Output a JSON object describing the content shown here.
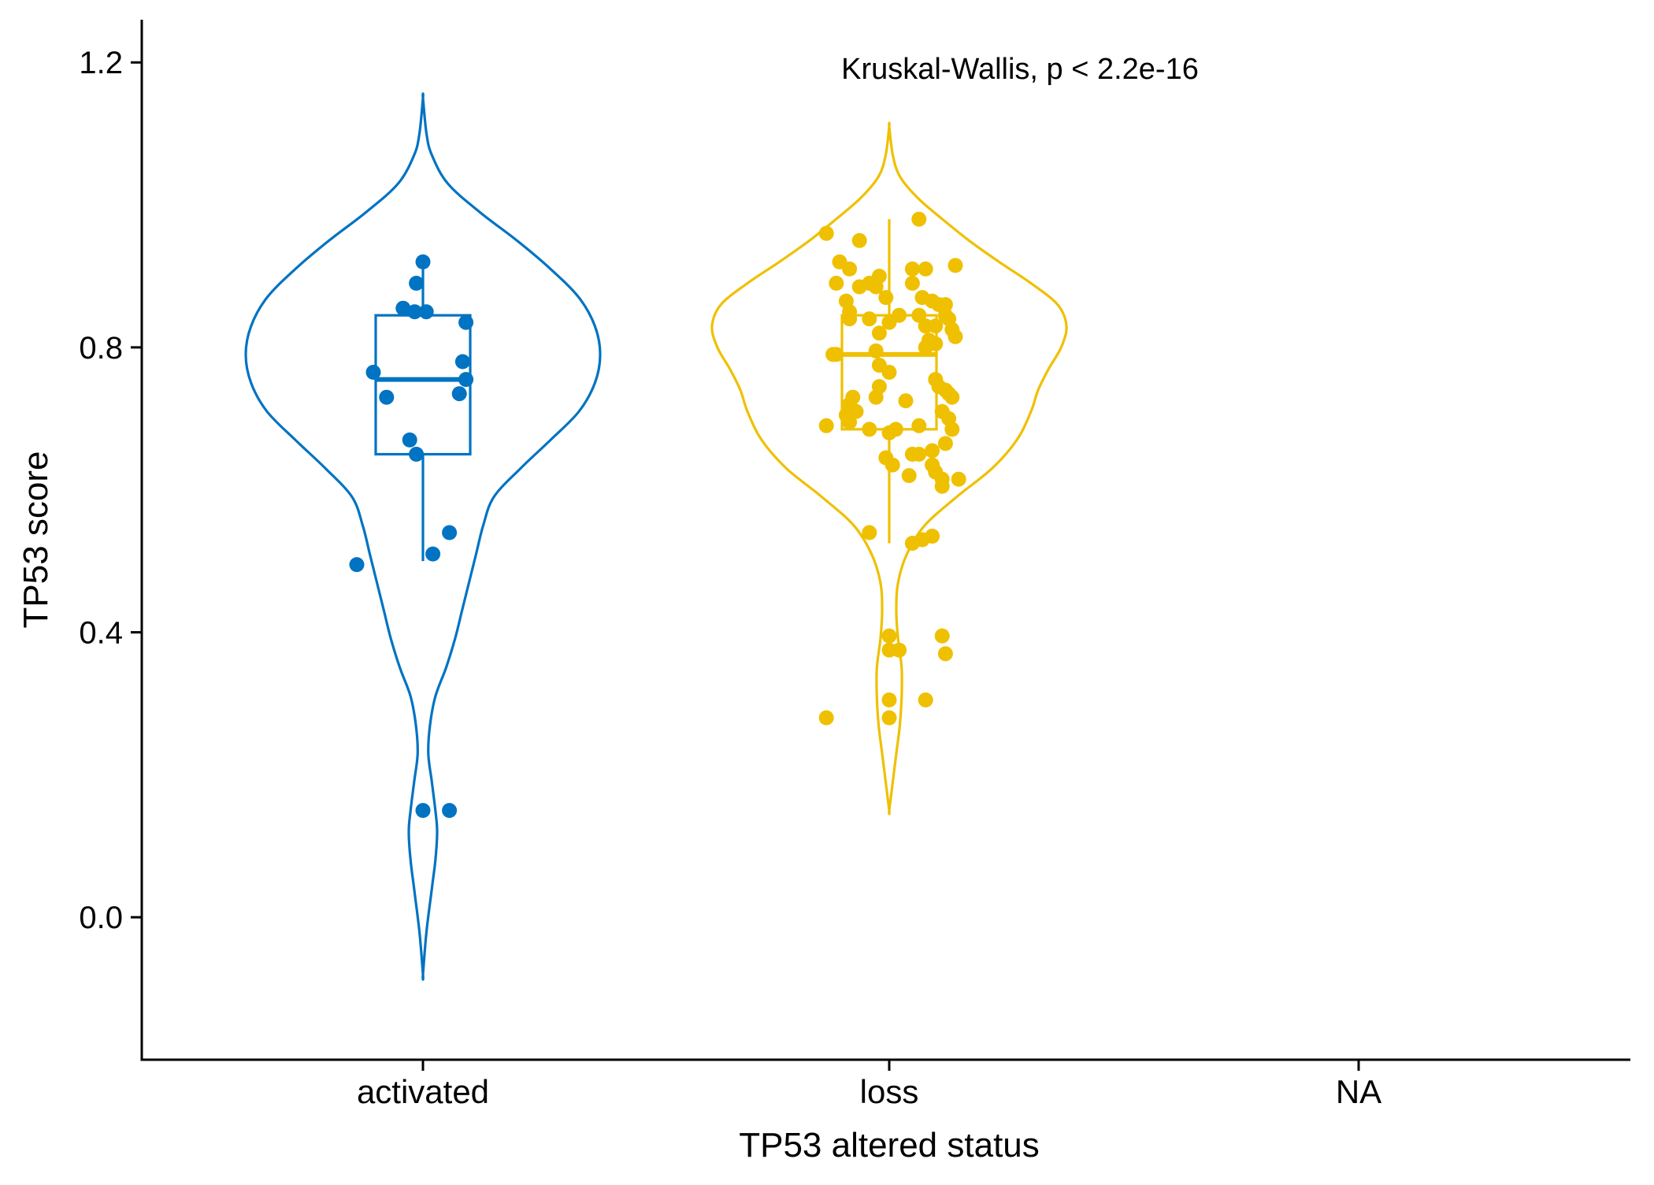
{
  "chart_data": {
    "type": "violin",
    "title": "",
    "annotation": "Kruskal-Wallis, p < 2.2e-16",
    "xlabel": "TP53 altered status",
    "ylabel": "TP53 score",
    "categories": [
      "activated",
      "loss",
      "NA"
    ],
    "ylim": [
      -0.2,
      1.26
    ],
    "yticks": [
      0.0,
      0.4,
      0.8,
      1.2
    ],
    "ytick_labels": [
      "0.0",
      "0.4",
      "0.8",
      "1.2"
    ],
    "grid": false,
    "legend": "none",
    "series": [
      {
        "category": "activated",
        "color": "#0073C2",
        "violin": {
          "y": [
            -0.08,
            -0.02,
            0.04,
            0.08,
            0.12,
            0.15,
            0.19,
            0.23,
            0.27,
            0.31,
            0.35,
            0.39,
            0.43,
            0.47,
            0.51,
            0.55,
            0.59,
            0.63,
            0.67,
            0.71,
            0.75,
            0.79,
            0.83,
            0.87,
            0.91,
            0.95,
            0.99,
            1.03,
            1.07,
            1.1,
            1.15
          ],
          "width": [
            0.0,
            0.02,
            0.05,
            0.07,
            0.08,
            0.07,
            0.05,
            0.03,
            0.04,
            0.07,
            0.13,
            0.18,
            0.22,
            0.26,
            0.3,
            0.34,
            0.4,
            0.55,
            0.72,
            0.88,
            0.97,
            1.0,
            0.97,
            0.88,
            0.72,
            0.53,
            0.32,
            0.14,
            0.05,
            0.02,
            0.0
          ]
        },
        "box": {
          "min": 0.5,
          "q1": 0.65,
          "median": 0.755,
          "q3": 0.845,
          "max": 0.915
        },
        "points": [
          {
            "x": 0.0,
            "y": 0.92
          },
          {
            "x": -0.02,
            "y": 0.89
          },
          {
            "x": -0.06,
            "y": 0.855
          },
          {
            "x": -0.025,
            "y": 0.85
          },
          {
            "x": 0.01,
            "y": 0.85
          },
          {
            "x": 0.13,
            "y": 0.835
          },
          {
            "x": 0.12,
            "y": 0.78
          },
          {
            "x": -0.15,
            "y": 0.765
          },
          {
            "x": 0.13,
            "y": 0.755
          },
          {
            "x": 0.11,
            "y": 0.735
          },
          {
            "x": -0.11,
            "y": 0.73
          },
          {
            "x": -0.04,
            "y": 0.67
          },
          {
            "x": -0.02,
            "y": 0.65
          },
          {
            "x": 0.08,
            "y": 0.54
          },
          {
            "x": 0.03,
            "y": 0.51
          },
          {
            "x": -0.2,
            "y": 0.495
          },
          {
            "x": 0.0,
            "y": 0.15
          },
          {
            "x": 0.08,
            "y": 0.15
          }
        ]
      },
      {
        "category": "loss",
        "color": "#EFC000",
        "violin": {
          "y": [
            0.15,
            0.19,
            0.23,
            0.27,
            0.31,
            0.35,
            0.39,
            0.43,
            0.47,
            0.51,
            0.55,
            0.59,
            0.63,
            0.67,
            0.71,
            0.74,
            0.77,
            0.8,
            0.83,
            0.86,
            0.89,
            0.92,
            0.95,
            0.98,
            1.01,
            1.04,
            1.07,
            1.11
          ],
          "width": [
            0.0,
            0.02,
            0.04,
            0.06,
            0.07,
            0.07,
            0.05,
            0.04,
            0.05,
            0.1,
            0.2,
            0.38,
            0.58,
            0.72,
            0.8,
            0.84,
            0.9,
            0.97,
            1.0,
            0.95,
            0.8,
            0.62,
            0.45,
            0.3,
            0.16,
            0.06,
            0.02,
            0.0
          ]
        },
        "box": {
          "min": 0.525,
          "q1": 0.685,
          "median": 0.79,
          "q3": 0.845,
          "max": 0.98
        },
        "points": [
          {
            "x": 0.09,
            "y": 0.98
          },
          {
            "x": -0.19,
            "y": 0.96
          },
          {
            "x": -0.09,
            "y": 0.95
          },
          {
            "x": -0.15,
            "y": 0.92
          },
          {
            "x": -0.12,
            "y": 0.91
          },
          {
            "x": 0.07,
            "y": 0.91
          },
          {
            "x": 0.11,
            "y": 0.91
          },
          {
            "x": 0.2,
            "y": 0.915
          },
          {
            "x": -0.03,
            "y": 0.9
          },
          {
            "x": -0.06,
            "y": 0.89
          },
          {
            "x": 0.07,
            "y": 0.89
          },
          {
            "x": -0.16,
            "y": 0.89
          },
          {
            "x": -0.09,
            "y": 0.885
          },
          {
            "x": -0.04,
            "y": 0.885
          },
          {
            "x": -0.01,
            "y": 0.87
          },
          {
            "x": 0.1,
            "y": 0.87
          },
          {
            "x": 0.13,
            "y": 0.865
          },
          {
            "x": -0.13,
            "y": 0.865
          },
          {
            "x": 0.15,
            "y": 0.86
          },
          {
            "x": 0.17,
            "y": 0.86
          },
          {
            "x": -0.12,
            "y": 0.85
          },
          {
            "x": 0.03,
            "y": 0.845
          },
          {
            "x": 0.09,
            "y": 0.845
          },
          {
            "x": 0.17,
            "y": 0.845
          },
          {
            "x": 0.18,
            "y": 0.84
          },
          {
            "x": -0.06,
            "y": 0.84
          },
          {
            "x": -0.12,
            "y": 0.84
          },
          {
            "x": 0.0,
            "y": 0.835
          },
          {
            "x": 0.14,
            "y": 0.83
          },
          {
            "x": 0.11,
            "y": 0.83
          },
          {
            "x": 0.19,
            "y": 0.825
          },
          {
            "x": -0.03,
            "y": 0.82
          },
          {
            "x": 0.2,
            "y": 0.815
          },
          {
            "x": 0.12,
            "y": 0.81
          },
          {
            "x": 0.14,
            "y": 0.805
          },
          {
            "x": 0.11,
            "y": 0.8
          },
          {
            "x": -0.04,
            "y": 0.795
          },
          {
            "x": -0.17,
            "y": 0.79
          },
          {
            "x": -0.16,
            "y": 0.79
          },
          {
            "x": -0.03,
            "y": 0.775
          },
          {
            "x": 0.0,
            "y": 0.765
          },
          {
            "x": 0.14,
            "y": 0.755
          },
          {
            "x": 0.15,
            "y": 0.745
          },
          {
            "x": 0.17,
            "y": 0.74
          },
          {
            "x": -0.03,
            "y": 0.745
          },
          {
            "x": 0.18,
            "y": 0.735
          },
          {
            "x": 0.19,
            "y": 0.73
          },
          {
            "x": -0.11,
            "y": 0.73
          },
          {
            "x": -0.04,
            "y": 0.73
          },
          {
            "x": 0.05,
            "y": 0.725
          },
          {
            "x": -0.12,
            "y": 0.72
          },
          {
            "x": -0.1,
            "y": 0.71
          },
          {
            "x": 0.16,
            "y": 0.71
          },
          {
            "x": 0.18,
            "y": 0.7
          },
          {
            "x": -0.13,
            "y": 0.705
          },
          {
            "x": -0.12,
            "y": 0.695
          },
          {
            "x": -0.19,
            "y": 0.69
          },
          {
            "x": 0.09,
            "y": 0.69
          },
          {
            "x": 0.02,
            "y": 0.685
          },
          {
            "x": -0.06,
            "y": 0.685
          },
          {
            "x": 0.0,
            "y": 0.68
          },
          {
            "x": 0.19,
            "y": 0.685
          },
          {
            "x": 0.17,
            "y": 0.665
          },
          {
            "x": 0.13,
            "y": 0.655
          },
          {
            "x": 0.07,
            "y": 0.65
          },
          {
            "x": 0.09,
            "y": 0.65
          },
          {
            "x": -0.01,
            "y": 0.645
          },
          {
            "x": 0.01,
            "y": 0.635
          },
          {
            "x": 0.13,
            "y": 0.635
          },
          {
            "x": 0.14,
            "y": 0.625
          },
          {
            "x": 0.06,
            "y": 0.62
          },
          {
            "x": 0.21,
            "y": 0.615
          },
          {
            "x": 0.16,
            "y": 0.615
          },
          {
            "x": 0.16,
            "y": 0.605
          },
          {
            "x": -0.06,
            "y": 0.54
          },
          {
            "x": 0.13,
            "y": 0.535
          },
          {
            "x": 0.1,
            "y": 0.53
          },
          {
            "x": 0.07,
            "y": 0.525
          },
          {
            "x": 0.0,
            "y": 0.395
          },
          {
            "x": 0.16,
            "y": 0.395
          },
          {
            "x": 0.0,
            "y": 0.375
          },
          {
            "x": 0.03,
            "y": 0.375
          },
          {
            "x": 0.17,
            "y": 0.37
          },
          {
            "x": 0.0,
            "y": 0.305
          },
          {
            "x": 0.11,
            "y": 0.305
          },
          {
            "x": -0.19,
            "y": 0.28
          },
          {
            "x": 0.0,
            "y": 0.28
          }
        ]
      },
      {
        "category": "NA",
        "color": "#868686",
        "violin": {
          "y": [],
          "width": []
        },
        "box": null,
        "points": []
      }
    ]
  }
}
